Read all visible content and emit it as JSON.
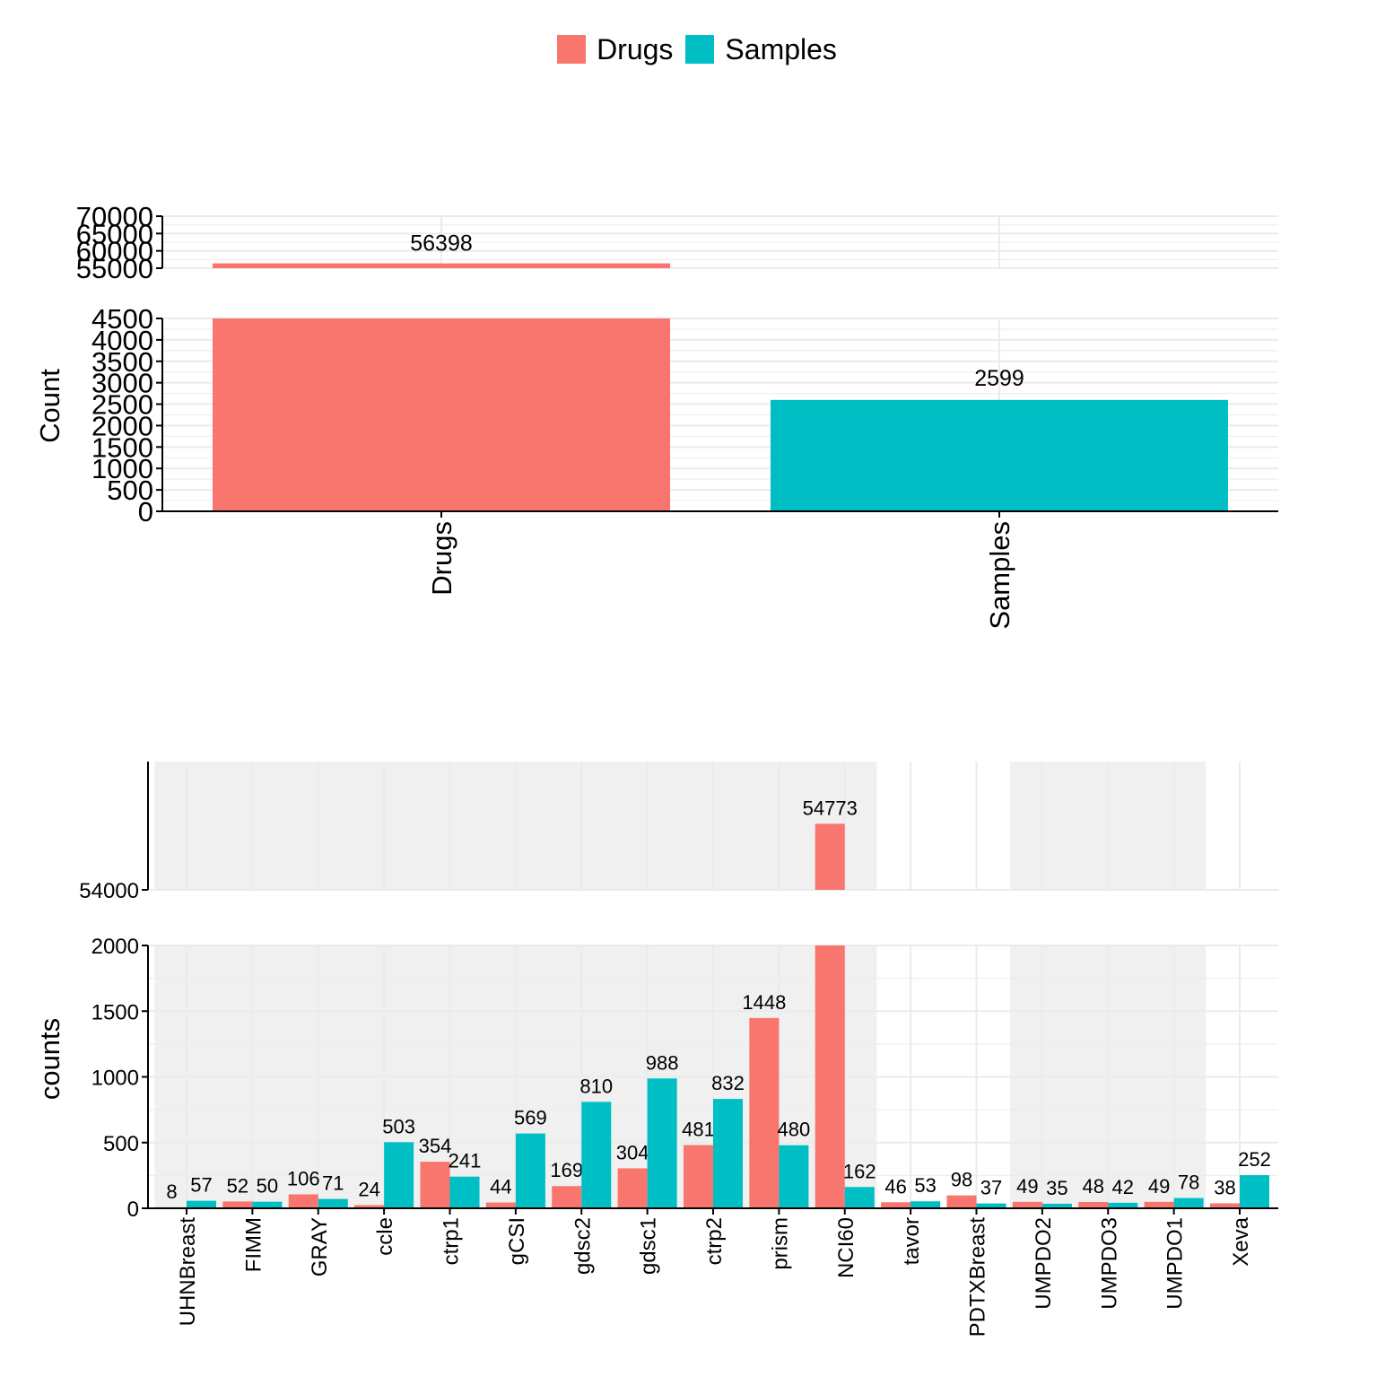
{
  "colors": {
    "drugs": "#F8766D",
    "samples": "#00BFC4",
    "grid": "#EBEBEB",
    "shade": "#F0F0F0"
  },
  "legend": {
    "items": [
      "Drugs",
      "Samples"
    ]
  },
  "chart_data": [
    {
      "type": "bar",
      "ylabel": "Count",
      "categories": [
        "Drugs",
        "Samples"
      ],
      "values": [
        56398,
        2599
      ],
      "data_labels": [
        "56398",
        "2599"
      ],
      "axis_break": true,
      "lower_ylim": [
        0,
        4500
      ],
      "upper_ylim": [
        55000,
        70000
      ],
      "lower_ticks": [
        "0",
        "500",
        "1000",
        "1500",
        "2000",
        "2500",
        "3000",
        "3500",
        "4000",
        "4500"
      ],
      "upper_ticks": [
        "55000",
        "60000",
        "65000",
        "70000"
      ],
      "grid": true
    },
    {
      "type": "bar",
      "ylabel": "counts",
      "categories": [
        "UHNBreast",
        "FIMM",
        "GRAY",
        "ccle",
        "ctrp1",
        "gCSI",
        "gdsc2",
        "gdsc1",
        "ctrp2",
        "prism",
        "NCI60",
        "tavor",
        "PDTXBreast",
        "UMPDO2",
        "UMPDO3",
        "UMPDO1",
        "Xeva"
      ],
      "series": [
        {
          "name": "Drugs",
          "values": [
            8,
            52,
            106,
            24,
            354,
            44,
            169,
            304,
            481,
            1448,
            54773,
            46,
            98,
            49,
            48,
            49,
            38
          ]
        },
        {
          "name": "Samples",
          "values": [
            57,
            50,
            71,
            503,
            241,
            569,
            810,
            988,
            832,
            480,
            162,
            53,
            37,
            35,
            42,
            78,
            252
          ]
        }
      ],
      "axis_break": true,
      "lower_ylim": [
        0,
        2000
      ],
      "upper_ylim": [
        54000,
        55500
      ],
      "lower_ticks": [
        "0",
        "500",
        "1000",
        "1500",
        "2000"
      ],
      "upper_ticks": [
        "54000"
      ],
      "shaded_categories": [
        "UHNBreast",
        "FIMM",
        "GRAY",
        "ccle",
        "ctrp1",
        "gCSI",
        "gdsc2",
        "gdsc1",
        "ctrp2",
        "prism",
        "NCI60",
        "UMPDO2",
        "UMPDO3",
        "UMPDO1"
      ],
      "grid": true
    }
  ]
}
